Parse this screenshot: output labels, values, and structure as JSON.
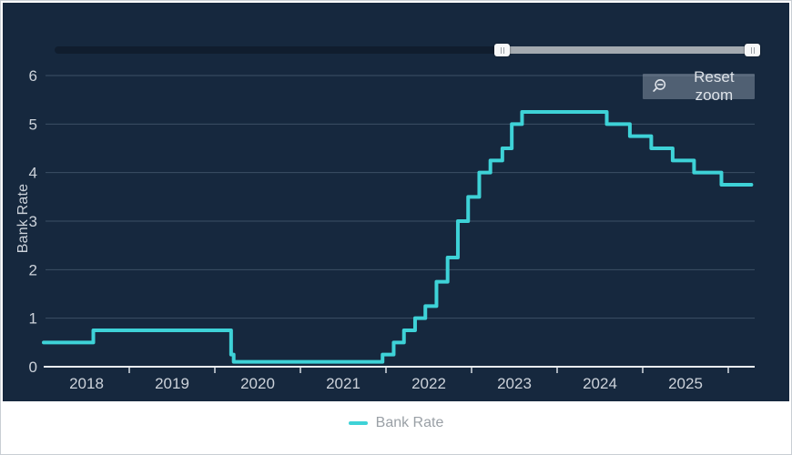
{
  "chart": {
    "reset_button": {
      "label": "Reset zoom"
    },
    "legend": {
      "label": "Bank Rate"
    },
    "colors": {
      "panel_bg": "#16283e",
      "line": "#3ed2d7",
      "grid": "#3c4f66",
      "axis_line": "#e9ecef",
      "tick": "#d7dce2",
      "axis_label": "#ccd2da",
      "legend_text": "#9aa0a6",
      "navigator_selected": "#a4aab0",
      "navigator_outside": "#101d2e"
    }
  },
  "chart_data": {
    "type": "line",
    "step": true,
    "title": "",
    "ylabel": "Bank Rate",
    "legend_position": "bottom",
    "grid": true,
    "ylim": [
      0,
      6
    ],
    "yticks": [
      0,
      1,
      2,
      3,
      4,
      5,
      6
    ],
    "xlim": [
      2018,
      2026.3
    ],
    "x_axis": {
      "tick_years": [
        2019,
        2020,
        2021,
        2022,
        2023,
        2024,
        2025,
        2026
      ],
      "label_years": [
        2018,
        2019,
        2020,
        2021,
        2022,
        2023,
        2024,
        2025
      ]
    },
    "series": [
      {
        "name": "Bank Rate",
        "x_end": 2026.27,
        "points": [
          {
            "x": 2018.0,
            "y": 0.5
          },
          {
            "x": 2018.58,
            "y": 0.75
          },
          {
            "x": 2020.19,
            "y": 0.25
          },
          {
            "x": 2020.22,
            "y": 0.1
          },
          {
            "x": 2021.96,
            "y": 0.25
          },
          {
            "x": 2022.09,
            "y": 0.5
          },
          {
            "x": 2022.21,
            "y": 0.75
          },
          {
            "x": 2022.34,
            "y": 1.0
          },
          {
            "x": 2022.46,
            "y": 1.25
          },
          {
            "x": 2022.59,
            "y": 1.75
          },
          {
            "x": 2022.72,
            "y": 2.25
          },
          {
            "x": 2022.84,
            "y": 3.0
          },
          {
            "x": 2022.96,
            "y": 3.5
          },
          {
            "x": 2023.09,
            "y": 4.0
          },
          {
            "x": 2023.22,
            "y": 4.25
          },
          {
            "x": 2023.36,
            "y": 4.5
          },
          {
            "x": 2023.47,
            "y": 5.0
          },
          {
            "x": 2023.59,
            "y": 5.25
          },
          {
            "x": 2024.58,
            "y": 5.0
          },
          {
            "x": 2024.85,
            "y": 4.75
          },
          {
            "x": 2025.1,
            "y": 4.5
          },
          {
            "x": 2025.35,
            "y": 4.25
          },
          {
            "x": 2025.6,
            "y": 4.0
          },
          {
            "x": 2025.92,
            "y": 3.75
          }
        ]
      }
    ]
  }
}
